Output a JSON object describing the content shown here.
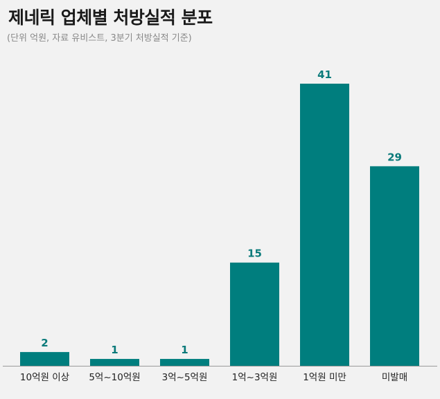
{
  "header": {
    "title": "제네릭 업체별 처방실적 분포",
    "subtitle": "(단위 억원, 자료 유비스트, 3분기 처방실적 기준)"
  },
  "colors": {
    "bar": "#007e7e",
    "label": "#0a7a7a",
    "axis": "#9a9a9a",
    "background": "#f2f2f2"
  },
  "chart_data": {
    "type": "bar",
    "title": "제네릭 업체별 처방실적 분포",
    "subtitle": "(단위 억원, 자료 유비스트, 3분기 처방실적 기준)",
    "xlabel": "",
    "ylabel": "",
    "categories": [
      "10억원 이상",
      "5억~10억원",
      "3억~5억원",
      "1억~3억원",
      "1억원 미만",
      "미발매"
    ],
    "values": [
      2,
      1,
      1,
      15,
      41,
      29
    ],
    "data_labels": [
      "2",
      "1",
      "1",
      "15",
      "41",
      "29"
    ],
    "ylim": [
      0,
      41
    ],
    "grid": false,
    "legend": "none"
  }
}
